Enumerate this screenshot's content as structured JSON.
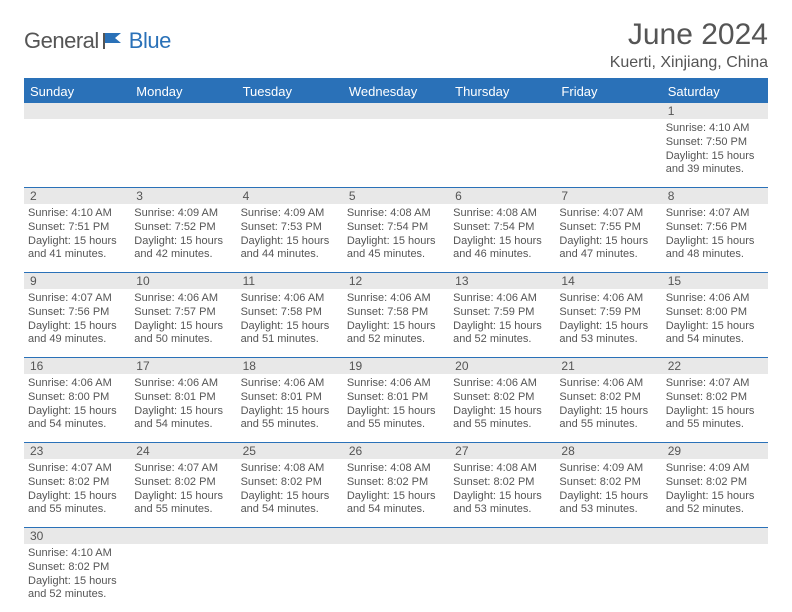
{
  "logo": {
    "part1": "General",
    "part2": "Blue",
    "color": "#2a71b8",
    "text_color": "#555555"
  },
  "title": "June 2024",
  "location": "Kuerti, Xinjiang, China",
  "columns": [
    "Sunday",
    "Monday",
    "Tuesday",
    "Wednesday",
    "Thursday",
    "Friday",
    "Saturday"
  ],
  "header_bg": "#2a71b8",
  "header_fg": "#ffffff",
  "daynum_bg": "#e8e8e8",
  "rule_color": "#2a71b8",
  "font_family": "Arial",
  "page_bg": "#ffffff",
  "text_color": "#555555",
  "detail_fontsize": 11,
  "title_fontsize": 30,
  "location_fontsize": 16,
  "header_fontsize": 13,
  "weeks": [
    [
      {
        "n": "",
        "lines": []
      },
      {
        "n": "",
        "lines": []
      },
      {
        "n": "",
        "lines": []
      },
      {
        "n": "",
        "lines": []
      },
      {
        "n": "",
        "lines": []
      },
      {
        "n": "",
        "lines": []
      },
      {
        "n": "1",
        "lines": [
          "Sunrise: 4:10 AM",
          "Sunset: 7:50 PM",
          "Daylight: 15 hours and 39 minutes."
        ]
      }
    ],
    [
      {
        "n": "2",
        "lines": [
          "Sunrise: 4:10 AM",
          "Sunset: 7:51 PM",
          "Daylight: 15 hours and 41 minutes."
        ]
      },
      {
        "n": "3",
        "lines": [
          "Sunrise: 4:09 AM",
          "Sunset: 7:52 PM",
          "Daylight: 15 hours and 42 minutes."
        ]
      },
      {
        "n": "4",
        "lines": [
          "Sunrise: 4:09 AM",
          "Sunset: 7:53 PM",
          "Daylight: 15 hours and 44 minutes."
        ]
      },
      {
        "n": "5",
        "lines": [
          "Sunrise: 4:08 AM",
          "Sunset: 7:54 PM",
          "Daylight: 15 hours and 45 minutes."
        ]
      },
      {
        "n": "6",
        "lines": [
          "Sunrise: 4:08 AM",
          "Sunset: 7:54 PM",
          "Daylight: 15 hours and 46 minutes."
        ]
      },
      {
        "n": "7",
        "lines": [
          "Sunrise: 4:07 AM",
          "Sunset: 7:55 PM",
          "Daylight: 15 hours and 47 minutes."
        ]
      },
      {
        "n": "8",
        "lines": [
          "Sunrise: 4:07 AM",
          "Sunset: 7:56 PM",
          "Daylight: 15 hours and 48 minutes."
        ]
      }
    ],
    [
      {
        "n": "9",
        "lines": [
          "Sunrise: 4:07 AM",
          "Sunset: 7:56 PM",
          "Daylight: 15 hours and 49 minutes."
        ]
      },
      {
        "n": "10",
        "lines": [
          "Sunrise: 4:06 AM",
          "Sunset: 7:57 PM",
          "Daylight: 15 hours and 50 minutes."
        ]
      },
      {
        "n": "11",
        "lines": [
          "Sunrise: 4:06 AM",
          "Sunset: 7:58 PM",
          "Daylight: 15 hours and 51 minutes."
        ]
      },
      {
        "n": "12",
        "lines": [
          "Sunrise: 4:06 AM",
          "Sunset: 7:58 PM",
          "Daylight: 15 hours and 52 minutes."
        ]
      },
      {
        "n": "13",
        "lines": [
          "Sunrise: 4:06 AM",
          "Sunset: 7:59 PM",
          "Daylight: 15 hours and 52 minutes."
        ]
      },
      {
        "n": "14",
        "lines": [
          "Sunrise: 4:06 AM",
          "Sunset: 7:59 PM",
          "Daylight: 15 hours and 53 minutes."
        ]
      },
      {
        "n": "15",
        "lines": [
          "Sunrise: 4:06 AM",
          "Sunset: 8:00 PM",
          "Daylight: 15 hours and 54 minutes."
        ]
      }
    ],
    [
      {
        "n": "16",
        "lines": [
          "Sunrise: 4:06 AM",
          "Sunset: 8:00 PM",
          "Daylight: 15 hours and 54 minutes."
        ]
      },
      {
        "n": "17",
        "lines": [
          "Sunrise: 4:06 AM",
          "Sunset: 8:01 PM",
          "Daylight: 15 hours and 54 minutes."
        ]
      },
      {
        "n": "18",
        "lines": [
          "Sunrise: 4:06 AM",
          "Sunset: 8:01 PM",
          "Daylight: 15 hours and 55 minutes."
        ]
      },
      {
        "n": "19",
        "lines": [
          "Sunrise: 4:06 AM",
          "Sunset: 8:01 PM",
          "Daylight: 15 hours and 55 minutes."
        ]
      },
      {
        "n": "20",
        "lines": [
          "Sunrise: 4:06 AM",
          "Sunset: 8:02 PM",
          "Daylight: 15 hours and 55 minutes."
        ]
      },
      {
        "n": "21",
        "lines": [
          "Sunrise: 4:06 AM",
          "Sunset: 8:02 PM",
          "Daylight: 15 hours and 55 minutes."
        ]
      },
      {
        "n": "22",
        "lines": [
          "Sunrise: 4:07 AM",
          "Sunset: 8:02 PM",
          "Daylight: 15 hours and 55 minutes."
        ]
      }
    ],
    [
      {
        "n": "23",
        "lines": [
          "Sunrise: 4:07 AM",
          "Sunset: 8:02 PM",
          "Daylight: 15 hours and 55 minutes."
        ]
      },
      {
        "n": "24",
        "lines": [
          "Sunrise: 4:07 AM",
          "Sunset: 8:02 PM",
          "Daylight: 15 hours and 55 minutes."
        ]
      },
      {
        "n": "25",
        "lines": [
          "Sunrise: 4:08 AM",
          "Sunset: 8:02 PM",
          "Daylight: 15 hours and 54 minutes."
        ]
      },
      {
        "n": "26",
        "lines": [
          "Sunrise: 4:08 AM",
          "Sunset: 8:02 PM",
          "Daylight: 15 hours and 54 minutes."
        ]
      },
      {
        "n": "27",
        "lines": [
          "Sunrise: 4:08 AM",
          "Sunset: 8:02 PM",
          "Daylight: 15 hours and 53 minutes."
        ]
      },
      {
        "n": "28",
        "lines": [
          "Sunrise: 4:09 AM",
          "Sunset: 8:02 PM",
          "Daylight: 15 hours and 53 minutes."
        ]
      },
      {
        "n": "29",
        "lines": [
          "Sunrise: 4:09 AM",
          "Sunset: 8:02 PM",
          "Daylight: 15 hours and 52 minutes."
        ]
      }
    ],
    [
      {
        "n": "30",
        "lines": [
          "Sunrise: 4:10 AM",
          "Sunset: 8:02 PM",
          "Daylight: 15 hours and 52 minutes."
        ]
      },
      {
        "n": "",
        "lines": []
      },
      {
        "n": "",
        "lines": []
      },
      {
        "n": "",
        "lines": []
      },
      {
        "n": "",
        "lines": []
      },
      {
        "n": "",
        "lines": []
      },
      {
        "n": "",
        "lines": []
      }
    ]
  ]
}
